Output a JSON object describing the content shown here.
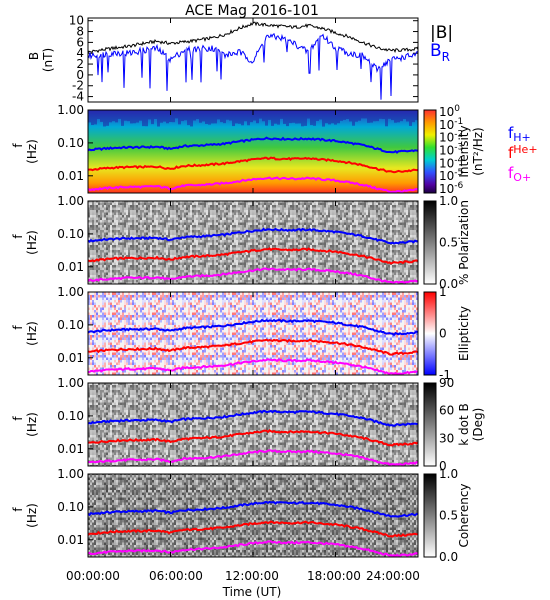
{
  "title": "ACE Mag 2016-101",
  "x_axis": {
    "label": "Time (UT)",
    "ticks": [
      "00:00:00",
      "06:00:00",
      "12:00:00",
      "18:00:00",
      "24:00:00"
    ],
    "range_hours": [
      0,
      24
    ]
  },
  "legend_b": {
    "entries": [
      {
        "text": "|B|",
        "color": "#000000"
      },
      {
        "main": "B",
        "sub": "R",
        "color": "#0000ff"
      }
    ]
  },
  "legend_f": {
    "entries": [
      {
        "main": "f",
        "sub": "H+",
        "color": "#0000ff"
      },
      {
        "main": "f",
        "sub": "He+",
        "color": "#ff0000"
      },
      {
        "main": "f",
        "sub": "O+",
        "color": "#ff00ff"
      }
    ]
  },
  "freq_axis": {
    "label_top": "f",
    "label_bottom": "(Hz)",
    "ticks": [
      "1.00",
      "0.10",
      "0.01"
    ],
    "tick_values": [
      1.0,
      0.1,
      0.01
    ],
    "range": [
      0.003,
      1.0
    ],
    "scale": "log"
  },
  "colors": {
    "bmag": "#000000",
    "br": "#0000ff",
    "fH": "#0000ff",
    "fHe": "#ff0000",
    "fO": "#ff00ff"
  },
  "panels": [
    {
      "kind": "line",
      "ylabel_top": "B",
      "ylabel_bottom": "(nT)",
      "ticks": [
        "10",
        "8",
        "6",
        "4",
        "2",
        "0",
        "-2",
        "-4"
      ],
      "tick_values": [
        10,
        8,
        6,
        4,
        2,
        0,
        -2,
        -4
      ],
      "range": [
        -5,
        10.5
      ]
    },
    {
      "kind": "spectrogram",
      "colorbar": "rainbow",
      "cb_scale": "log",
      "cb_ticks": [
        {
          "base": "10",
          "exp": "0"
        },
        {
          "base": "10",
          "exp": "-1"
        },
        {
          "base": "10",
          "exp": "-2"
        },
        {
          "base": "10",
          "exp": "-3"
        },
        {
          "base": "10",
          "exp": "-4"
        },
        {
          "base": "10",
          "exp": "-5"
        },
        {
          "base": "10",
          "exp": "-6"
        }
      ],
      "cb_label_1": "Intensity",
      "cb_label_2": "(nT²/Hz)"
    },
    {
      "kind": "spectrogram",
      "colorbar": "gray_rev",
      "cb_ticks": [
        "1.0",
        "0.5",
        "0.0"
      ],
      "cb_tick_values": [
        1.0,
        0.5,
        0.0
      ],
      "cb_label_1": "% Polarization"
    },
    {
      "kind": "spectrogram",
      "colorbar": "bwr",
      "cb_ticks": [
        "1",
        "0",
        "-1"
      ],
      "cb_tick_values": [
        1,
        0,
        -1
      ],
      "cb_label_1": "Ellipticity"
    },
    {
      "kind": "spectrogram",
      "colorbar": "gray_rev",
      "cb_ticks": [
        "90",
        "60",
        "30",
        "0"
      ],
      "cb_tick_values": [
        90,
        60,
        30,
        0
      ],
      "cb_label_1": "k dot B",
      "cb_label_2": "(Deg)"
    },
    {
      "kind": "spectrogram",
      "colorbar": "gray_rev",
      "cb_ticks": [
        "1.0",
        "0.5",
        "0.0"
      ],
      "cb_tick_values": [
        1.0,
        0.5,
        0.0
      ],
      "cb_label_1": "Coherency"
    }
  ],
  "chart_data": {
    "type": "line",
    "title": "ACE Mag 2016-101",
    "xlabel": "Time (UT)",
    "x_hours": [
      0,
      1,
      2,
      3,
      4,
      5,
      6,
      7,
      8,
      9,
      10,
      11,
      12,
      13,
      14,
      15,
      16,
      17,
      18,
      19,
      20,
      21,
      22,
      23,
      24
    ],
    "series": [
      {
        "name": "|B|",
        "panel": 0,
        "values": [
          4.2,
          4.6,
          5.0,
          5.3,
          5.8,
          6.2,
          5.8,
          6.1,
          6.4,
          6.8,
          7.5,
          8.6,
          9.5,
          9.2,
          9.0,
          8.8,
          9.1,
          8.6,
          7.8,
          7.0,
          6.0,
          5.0,
          4.5,
          4.6,
          4.8
        ]
      },
      {
        "name": "B_R",
        "panel": 0,
        "values": [
          3.5,
          3.8,
          4.1,
          4.0,
          4.5,
          4.9,
          2.8,
          4.6,
          4.8,
          5.0,
          3.6,
          4.2,
          2.5,
          7.1,
          6.9,
          5.8,
          4.2,
          7.4,
          5.0,
          4.0,
          3.5,
          1.0,
          2.8,
          3.3,
          3.8
        ]
      },
      {
        "name": "f_H+",
        "unit": "Hz",
        "values": [
          0.06,
          0.066,
          0.071,
          0.073,
          0.074,
          0.076,
          0.066,
          0.08,
          0.083,
          0.088,
          0.095,
          0.11,
          0.125,
          0.138,
          0.133,
          0.13,
          0.135,
          0.125,
          0.115,
          0.1,
          0.085,
          0.066,
          0.052,
          0.055,
          0.06
        ]
      },
      {
        "name": "f_He+",
        "unit": "Hz",
        "values": [
          0.015,
          0.0165,
          0.0178,
          0.0183,
          0.0185,
          0.019,
          0.0165,
          0.02,
          0.0208,
          0.022,
          0.0238,
          0.0275,
          0.031,
          0.0345,
          0.033,
          0.0325,
          0.034,
          0.031,
          0.029,
          0.025,
          0.021,
          0.0165,
          0.013,
          0.0138,
          0.015
        ]
      },
      {
        "name": "f_O+",
        "unit": "Hz",
        "values": [
          0.0038,
          0.0041,
          0.0044,
          0.0046,
          0.0046,
          0.0048,
          0.0041,
          0.005,
          0.0052,
          0.0055,
          0.006,
          0.0069,
          0.0078,
          0.0086,
          0.0083,
          0.0081,
          0.0084,
          0.0078,
          0.0072,
          0.0063,
          0.0053,
          0.0041,
          0.0033,
          0.0034,
          0.0038
        ]
      }
    ]
  }
}
